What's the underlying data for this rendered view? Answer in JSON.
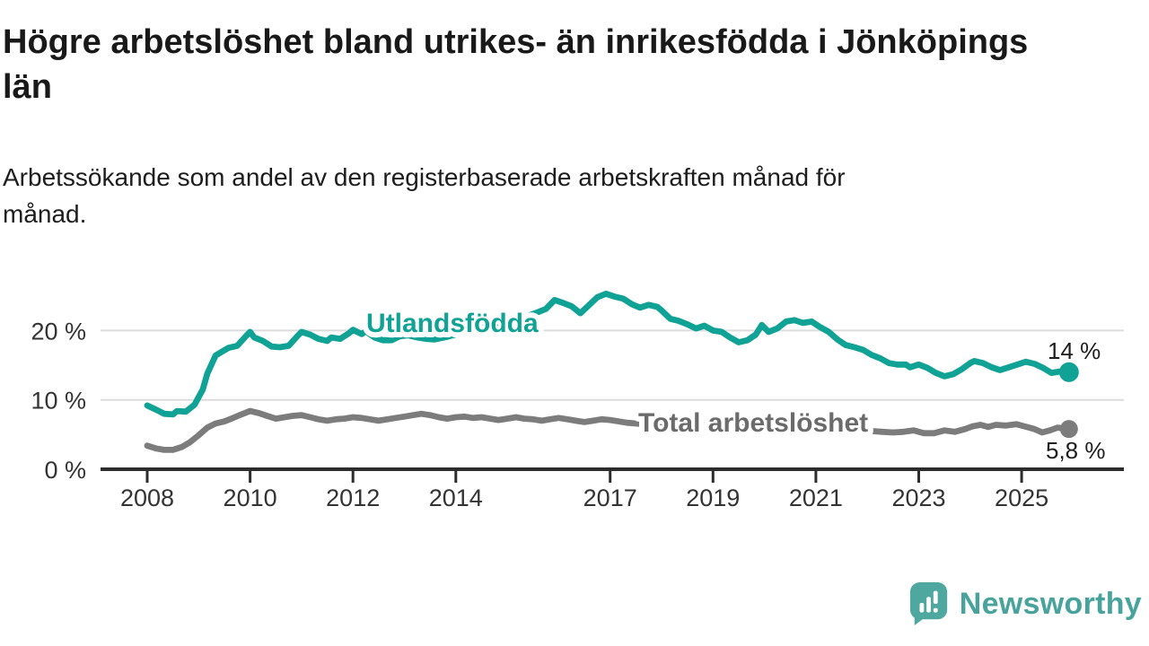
{
  "header": {
    "title": "Högre arbetslöshet bland utrikes- än inrikesfödda i Jönköpings län",
    "subtitle": "Arbetssökande som andel av den registerbaserade arbetskraften månad för månad."
  },
  "chart_data": {
    "type": "line",
    "unit": "%",
    "grid": "horizontal-only",
    "colors": {
      "axis": "#2d2d2d",
      "gridline": "#dcdcdc",
      "tick_text": "#333333"
    },
    "ylim": [
      0,
      27
    ],
    "y_ticks": [
      {
        "value": 0,
        "label": "0 %"
      },
      {
        "value": 10,
        "label": "10 %"
      },
      {
        "value": 20,
        "label": "20 %"
      }
    ],
    "x_ticks": [
      {
        "year": 2008,
        "label": "2008"
      },
      {
        "year": 2010,
        "label": "2010"
      },
      {
        "year": 2012,
        "label": "2012"
      },
      {
        "year": 2014,
        "label": "2014"
      },
      {
        "year": 2017,
        "label": "2017"
      },
      {
        "year": 2019,
        "label": "2019"
      },
      {
        "year": 2021,
        "label": "2021"
      },
      {
        "year": 2023,
        "label": "2023"
      },
      {
        "year": 2025,
        "label": "2025"
      }
    ],
    "series": [
      {
        "name": "Utlandsfödda",
        "color": "#0fa295",
        "label_color": "#0fa295",
        "end_label": "14 %",
        "end_value": 14,
        "points": [
          [
            2008.0,
            9.2
          ],
          [
            2008.17,
            8.6
          ],
          [
            2008.33,
            8.0
          ],
          [
            2008.5,
            7.9
          ],
          [
            2008.58,
            8.4
          ],
          [
            2008.75,
            8.3
          ],
          [
            2008.92,
            9.3
          ],
          [
            2009.08,
            11.5
          ],
          [
            2009.17,
            13.8
          ],
          [
            2009.33,
            16.4
          ],
          [
            2009.42,
            16.8
          ],
          [
            2009.58,
            17.5
          ],
          [
            2009.75,
            17.8
          ],
          [
            2009.92,
            19.2
          ],
          [
            2010.0,
            19.8
          ],
          [
            2010.08,
            19.0
          ],
          [
            2010.25,
            18.5
          ],
          [
            2010.42,
            17.7
          ],
          [
            2010.58,
            17.6
          ],
          [
            2010.75,
            17.8
          ],
          [
            2010.92,
            19.2
          ],
          [
            2011.0,
            19.8
          ],
          [
            2011.17,
            19.4
          ],
          [
            2011.33,
            18.8
          ],
          [
            2011.5,
            18.5
          ],
          [
            2011.58,
            19.0
          ],
          [
            2011.75,
            18.8
          ],
          [
            2011.92,
            19.6
          ],
          [
            2012.0,
            20.1
          ],
          [
            2012.17,
            19.5
          ],
          [
            2012.25,
            19.9
          ],
          [
            2012.42,
            19.0
          ],
          [
            2012.58,
            18.6
          ],
          [
            2012.75,
            18.6
          ],
          [
            2012.92,
            19.2
          ],
          [
            2013.08,
            19.3
          ],
          [
            2013.25,
            19.0
          ],
          [
            2013.42,
            18.8
          ],
          [
            2013.58,
            18.7
          ],
          [
            2013.83,
            19.1
          ],
          [
            2014.08,
            19.6
          ],
          [
            2014.33,
            20.0
          ],
          [
            2014.58,
            20.4
          ],
          [
            2014.83,
            20.9
          ],
          [
            2015.08,
            21.4
          ],
          [
            2015.33,
            21.9
          ],
          [
            2015.58,
            22.6
          ],
          [
            2015.75,
            23.1
          ],
          [
            2015.92,
            24.4
          ],
          [
            2016.08,
            24.0
          ],
          [
            2016.25,
            23.5
          ],
          [
            2016.42,
            22.5
          ],
          [
            2016.58,
            23.6
          ],
          [
            2016.75,
            24.8
          ],
          [
            2016.92,
            25.3
          ],
          [
            2017.08,
            24.9
          ],
          [
            2017.25,
            24.6
          ],
          [
            2017.42,
            23.8
          ],
          [
            2017.58,
            23.3
          ],
          [
            2017.75,
            23.7
          ],
          [
            2017.92,
            23.4
          ],
          [
            2018.0,
            22.9
          ],
          [
            2018.17,
            21.7
          ],
          [
            2018.33,
            21.4
          ],
          [
            2018.5,
            20.9
          ],
          [
            2018.67,
            20.3
          ],
          [
            2018.83,
            20.7
          ],
          [
            2019.0,
            20.0
          ],
          [
            2019.17,
            19.8
          ],
          [
            2019.33,
            19.0
          ],
          [
            2019.5,
            18.3
          ],
          [
            2019.67,
            18.6
          ],
          [
            2019.83,
            19.4
          ],
          [
            2019.95,
            20.8
          ],
          [
            2020.08,
            19.8
          ],
          [
            2020.25,
            20.3
          ],
          [
            2020.42,
            21.3
          ],
          [
            2020.58,
            21.5
          ],
          [
            2020.75,
            21.1
          ],
          [
            2020.92,
            21.3
          ],
          [
            2021.08,
            20.5
          ],
          [
            2021.25,
            19.8
          ],
          [
            2021.42,
            18.7
          ],
          [
            2021.58,
            17.9
          ],
          [
            2021.75,
            17.6
          ],
          [
            2021.92,
            17.2
          ],
          [
            2022.08,
            16.5
          ],
          [
            2022.25,
            16.0
          ],
          [
            2022.42,
            15.3
          ],
          [
            2022.58,
            15.1
          ],
          [
            2022.75,
            15.1
          ],
          [
            2022.83,
            14.7
          ],
          [
            2023.0,
            15.1
          ],
          [
            2023.17,
            14.6
          ],
          [
            2023.33,
            13.9
          ],
          [
            2023.5,
            13.4
          ],
          [
            2023.67,
            13.7
          ],
          [
            2023.83,
            14.4
          ],
          [
            2024.0,
            15.3
          ],
          [
            2024.08,
            15.6
          ],
          [
            2024.25,
            15.3
          ],
          [
            2024.42,
            14.7
          ],
          [
            2024.58,
            14.3
          ],
          [
            2024.75,
            14.7
          ],
          [
            2024.92,
            15.1
          ],
          [
            2025.08,
            15.5
          ],
          [
            2025.25,
            15.2
          ],
          [
            2025.42,
            14.6
          ],
          [
            2025.58,
            13.9
          ],
          [
            2025.75,
            14.1
          ],
          [
            2025.92,
            14.0
          ]
        ]
      },
      {
        "name": "Total arbetslöshet",
        "color": "#7c7c7c",
        "label_color": "#6b6b6b",
        "end_label": "5,8 %",
        "end_value": 5.8,
        "points": [
          [
            2008.0,
            3.4
          ],
          [
            2008.17,
            3.0
          ],
          [
            2008.33,
            2.8
          ],
          [
            2008.5,
            2.8
          ],
          [
            2008.67,
            3.2
          ],
          [
            2008.83,
            3.9
          ],
          [
            2009.0,
            4.9
          ],
          [
            2009.17,
            6.0
          ],
          [
            2009.33,
            6.6
          ],
          [
            2009.5,
            6.9
          ],
          [
            2009.67,
            7.4
          ],
          [
            2009.83,
            7.9
          ],
          [
            2010.0,
            8.4
          ],
          [
            2010.17,
            8.1
          ],
          [
            2010.33,
            7.7
          ],
          [
            2010.5,
            7.3
          ],
          [
            2010.67,
            7.5
          ],
          [
            2010.83,
            7.7
          ],
          [
            2011.0,
            7.8
          ],
          [
            2011.17,
            7.5
          ],
          [
            2011.33,
            7.2
          ],
          [
            2011.5,
            7.0
          ],
          [
            2011.67,
            7.2
          ],
          [
            2011.83,
            7.3
          ],
          [
            2012.0,
            7.5
          ],
          [
            2012.17,
            7.4
          ],
          [
            2012.33,
            7.2
          ],
          [
            2012.5,
            7.0
          ],
          [
            2012.67,
            7.2
          ],
          [
            2012.83,
            7.4
          ],
          [
            2013.0,
            7.6
          ],
          [
            2013.17,
            7.8
          ],
          [
            2013.33,
            8.0
          ],
          [
            2013.5,
            7.8
          ],
          [
            2013.67,
            7.5
          ],
          [
            2013.83,
            7.3
          ],
          [
            2014.0,
            7.5
          ],
          [
            2014.17,
            7.6
          ],
          [
            2014.33,
            7.4
          ],
          [
            2014.5,
            7.5
          ],
          [
            2014.67,
            7.3
          ],
          [
            2014.83,
            7.1
          ],
          [
            2015.0,
            7.3
          ],
          [
            2015.17,
            7.5
          ],
          [
            2015.33,
            7.3
          ],
          [
            2015.5,
            7.2
          ],
          [
            2015.67,
            7.0
          ],
          [
            2015.83,
            7.2
          ],
          [
            2016.0,
            7.4
          ],
          [
            2016.17,
            7.2
          ],
          [
            2016.33,
            7.0
          ],
          [
            2016.5,
            6.8
          ],
          [
            2016.67,
            7.0
          ],
          [
            2016.83,
            7.2
          ],
          [
            2017.0,
            7.1
          ],
          [
            2017.17,
            6.9
          ],
          [
            2017.33,
            6.7
          ],
          [
            2017.5,
            6.6
          ],
          [
            2017.67,
            6.5
          ],
          [
            2017.83,
            6.4
          ],
          [
            2018.0,
            6.5
          ],
          [
            2018.25,
            6.4
          ],
          [
            2018.5,
            6.3
          ],
          [
            2018.75,
            6.4
          ],
          [
            2019.0,
            6.5
          ],
          [
            2019.25,
            6.4
          ],
          [
            2019.5,
            6.5
          ],
          [
            2019.75,
            6.7
          ],
          [
            2020.0,
            6.9
          ],
          [
            2020.25,
            7.5
          ],
          [
            2020.5,
            7.9
          ],
          [
            2020.75,
            7.7
          ],
          [
            2021.0,
            7.3
          ],
          [
            2021.25,
            6.8
          ],
          [
            2021.5,
            6.3
          ],
          [
            2021.75,
            5.8
          ],
          [
            2021.92,
            5.4
          ],
          [
            2022.1,
            5.5
          ],
          [
            2022.3,
            5.4
          ],
          [
            2022.5,
            5.3
          ],
          [
            2022.7,
            5.4
          ],
          [
            2022.9,
            5.6
          ],
          [
            2023.1,
            5.2
          ],
          [
            2023.3,
            5.2
          ],
          [
            2023.5,
            5.6
          ],
          [
            2023.7,
            5.4
          ],
          [
            2023.9,
            5.8
          ],
          [
            2024.05,
            6.2
          ],
          [
            2024.2,
            6.4
          ],
          [
            2024.35,
            6.1
          ],
          [
            2024.5,
            6.4
          ],
          [
            2024.7,
            6.3
          ],
          [
            2024.9,
            6.5
          ],
          [
            2025.05,
            6.2
          ],
          [
            2025.25,
            5.8
          ],
          [
            2025.4,
            5.3
          ],
          [
            2025.55,
            5.6
          ],
          [
            2025.7,
            6.0
          ],
          [
            2025.92,
            5.8
          ]
        ]
      }
    ]
  },
  "footer": {
    "logo_text": "Newsworthy",
    "logo_color": "#47a39c",
    "icon_color": "#4ea8a0",
    "icon_name": "newsworthy-speech-bubble-bar-chart-icon"
  }
}
